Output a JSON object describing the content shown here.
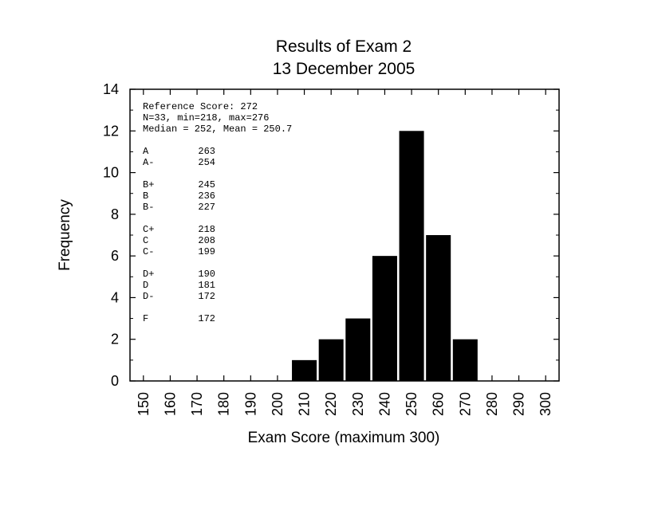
{
  "chart_data": {
    "type": "bar",
    "title": "Results of Exam 2",
    "subtitle": "13 December 2005",
    "xlabel": "Exam Score (maximum 300)",
    "ylabel": "Frequency",
    "xlim": [
      145,
      305
    ],
    "ylim": [
      0,
      14
    ],
    "x_ticks": [
      "150",
      "160",
      "170",
      "180",
      "190",
      "200",
      "210",
      "220",
      "230",
      "240",
      "250",
      "260",
      "270",
      "280",
      "290",
      "300"
    ],
    "y_ticks": [
      "0",
      "2",
      "4",
      "6",
      "8",
      "10",
      "12",
      "14"
    ],
    "bin_width": 10,
    "x": [
      210,
      220,
      230,
      240,
      250,
      260,
      270
    ],
    "values": [
      1,
      2,
      3,
      6,
      12,
      7,
      2
    ],
    "bar_color": "#000000",
    "grid": false,
    "annotations": {
      "stats": [
        "Reference Score: 272",
        "N=33, min=218, max=276",
        "Median = 252, Mean = 250.7"
      ],
      "grade_groups": [
        [
          {
            "grade": "A",
            "score": "263"
          },
          {
            "grade": "A-",
            "score": "254"
          }
        ],
        [
          {
            "grade": "B+",
            "score": "245"
          },
          {
            "grade": "B",
            "score": "236"
          },
          {
            "grade": "B-",
            "score": "227"
          }
        ],
        [
          {
            "grade": "C+",
            "score": "218"
          },
          {
            "grade": "C",
            "score": "208"
          },
          {
            "grade": "C-",
            "score": "199"
          }
        ],
        [
          {
            "grade": "D+",
            "score": "190"
          },
          {
            "grade": "D",
            "score": "181"
          },
          {
            "grade": "D-",
            "score": "172"
          }
        ],
        [
          {
            "grade": "F",
            "score": "172"
          }
        ]
      ]
    }
  }
}
